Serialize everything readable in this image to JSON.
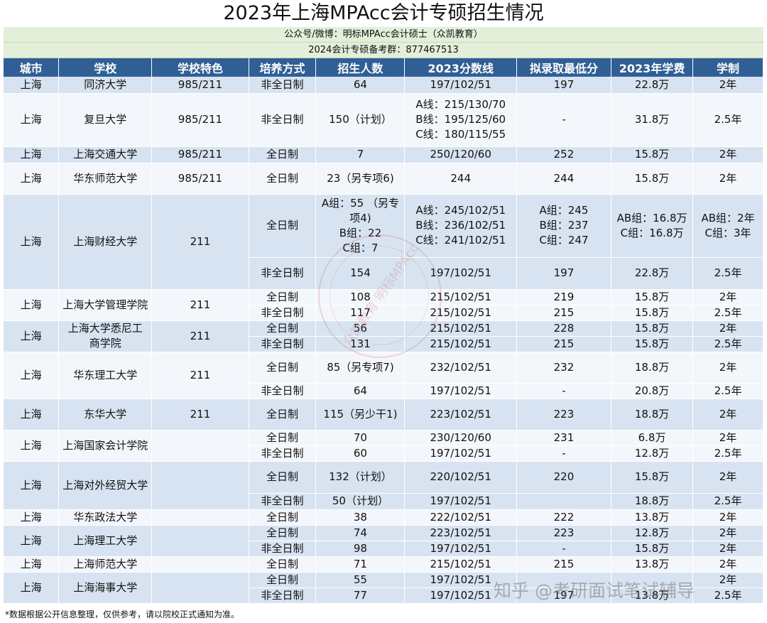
{
  "title": "2023年上海MPAcc会计专硕招生情况",
  "subtitle1": "公众号/微博：明标MPAcc会计硕士（众凯教育）",
  "subtitle2": "2024会计专硕备考群：877467513",
  "headers": [
    "城市",
    "学校",
    "学校特色",
    "培养方式",
    "招生人数",
    "2023分数线",
    "拟录取最低分",
    "2023年学费",
    "学制"
  ],
  "schools": [
    {
      "city": "上海",
      "name": "同济大学",
      "tag": "985/211",
      "rows": [
        {
          "mode": "非全日制",
          "quota": "64",
          "line": "197/102/51",
          "min": "197",
          "fee": "22.8万",
          "years": "2年"
        }
      ]
    },
    {
      "city": "上海",
      "name": "复旦大学",
      "tag": "985/211",
      "rows": [
        {
          "mode": "非全日制",
          "quota": "150（计划）",
          "line": "A线：215/130/70\nB线：195/125/60\nC线：180/115/55",
          "min": "-",
          "fee": "31.8万",
          "years": "2.5年"
        }
      ]
    },
    {
      "city": "上海",
      "name": "上海交通大学",
      "tag": "985/211",
      "rows": [
        {
          "mode": "全日制",
          "quota": "7",
          "line": "250/120/60",
          "min": "252",
          "fee": "15.8万",
          "years": "2年"
        }
      ]
    },
    {
      "city": "上海",
      "name": "华东师范大学",
      "tag": "985/211",
      "rows": [
        {
          "mode": "全日制",
          "quota": "23（另专项6)",
          "line": "244",
          "min": "244",
          "fee": "15.8万",
          "years": "2年"
        }
      ]
    },
    {
      "city": "上海",
      "name": "上海财经大学",
      "tag": "211",
      "rows": [
        {
          "mode": "全日制",
          "quota": "A组：55 （另专\n项4)\nB组：22\nC组：7",
          "line": "A线：245/102/51\nB线：236/102/51\nC线：241/102/51",
          "min": "A组：245\nB组：237\nC组：247",
          "fee": "AB组：16.8万\nC组：16.8万",
          "years": "AB组：2年\nC组：3年"
        },
        {
          "mode": "非全日制",
          "quota": "154",
          "line": "197/102/51",
          "min": "197",
          "fee": "22.8万",
          "years": "2.5年"
        }
      ]
    },
    {
      "city": "上海",
      "name": "上海大学管理学院",
      "tag": "211",
      "rows": [
        {
          "mode": "全日制",
          "quota": "108",
          "line": "215/102/51",
          "min": "219",
          "fee": "15.8万",
          "years": "2年"
        },
        {
          "mode": "非全日制",
          "quota": "117",
          "line": "215/102/51",
          "min": "215",
          "fee": "15.8万",
          "years": "2.5年"
        }
      ]
    },
    {
      "city": "上海",
      "name": "上海大学悉尼工\n商学院",
      "tag": "211",
      "rows": [
        {
          "mode": "全日制",
          "quota": "56",
          "line": "215/102/51",
          "min": "228",
          "fee": "15.8万",
          "years": "2年"
        },
        {
          "mode": "非全日制",
          "quota": "131",
          "line": "215/102/51",
          "min": "215",
          "fee": "15.8万",
          "years": "2.5年"
        }
      ]
    },
    {
      "city": "上海",
      "name": "华东理工大学",
      "tag": "211",
      "rows": [
        {
          "mode": "全日制",
          "quota": "85（另专项7)",
          "line": "232/102/51",
          "min": "232",
          "fee": "18.8万",
          "years": "2年"
        },
        {
          "mode": "非全日制",
          "quota": "64",
          "line": "197/102/51",
          "min": "-",
          "fee": "20.8万",
          "years": "2.5年"
        }
      ]
    },
    {
      "city": "上海",
      "name": "东华大学",
      "tag": "211",
      "rows": [
        {
          "mode": "全日制",
          "quota": "115（另少干1)",
          "line": "223/102/51",
          "min": "223",
          "fee": "18.8万",
          "years": "2年"
        }
      ]
    },
    {
      "city": "上海",
      "name": "上海国家会计学院",
      "tag": "",
      "rows": [
        {
          "mode": "全日制",
          "quota": "70",
          "line": "230/120/60",
          "min": "231",
          "fee": "6.8万",
          "years": "2年"
        },
        {
          "mode": "非全日制",
          "quota": "60",
          "line": "197/102/51",
          "min": "-",
          "fee": "12.8万",
          "years": "2.5年"
        }
      ]
    },
    {
      "city": "上海",
      "name": "上海对外经贸大学",
      "tag": "",
      "rows": [
        {
          "mode": "全日制",
          "quota": "132（计划）",
          "line": "220/102/51",
          "min": "220",
          "fee": "15.8万",
          "years": "2年"
        },
        {
          "mode": "非全日制",
          "quota": "50（计划）",
          "line": "197/102/51",
          "min": "",
          "fee": "18.8万",
          "years": "2.5年"
        }
      ]
    },
    {
      "city": "上海",
      "name": "华东政法大学",
      "tag": "",
      "rows": [
        {
          "mode": "全日制",
          "quota": "38",
          "line": "222/102/51",
          "min": "222",
          "fee": "13.8万",
          "years": "2年"
        }
      ]
    },
    {
      "city": "上海",
      "name": "上海理工大学",
      "tag": "",
      "rows": [
        {
          "mode": "全日制",
          "quota": "74",
          "line": "223/102/51",
          "min": "223",
          "fee": "12.8万",
          "years": "2年"
        },
        {
          "mode": "非全日制",
          "quota": "98",
          "line": "197/102/51",
          "min": "-",
          "fee": "15.8万",
          "years": "2年"
        }
      ]
    },
    {
      "city": "上海",
      "name": "上海师范大学",
      "tag": "",
      "rows": [
        {
          "mode": "全日制",
          "quota": "71",
          "line": "215/102/51",
          "min": "215",
          "fee": "13.8万",
          "years": "2年"
        }
      ]
    },
    {
      "city": "上海",
      "name": "上海海事大学",
      "tag": "",
      "rows": [
        {
          "mode": "全日制",
          "quota": "55",
          "line": "197/102/51",
          "min": "",
          "fee": "",
          "years": "2年"
        },
        {
          "mode": "非全日制",
          "quota": "77",
          "line": "197/102/51",
          "min": "197",
          "fee": "13.8万",
          "years": "2.5年"
        }
      ]
    }
  ],
  "footnote": "*数据根据公开信息整理，仅供参考，请以院校正式通知为准。",
  "watermark_stamp": "众凯教育 明标MPAcc",
  "watermark_zhihu": "知乎 @考研面试笔试辅导",
  "colors": {
    "header_bg": "#2f5f95",
    "band_dark": "#d7e3f1",
    "band_light": "#f3f7fb",
    "subtitle_bg": "#e3efd9"
  }
}
